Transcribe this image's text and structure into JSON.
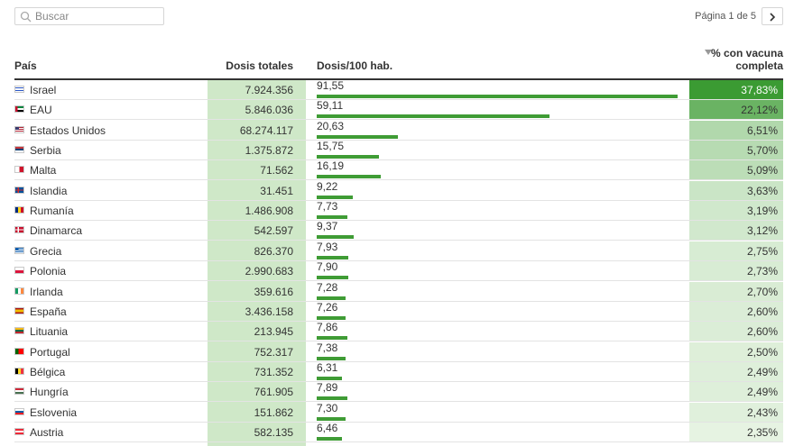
{
  "search": {
    "placeholder": "Buscar"
  },
  "pager": {
    "text": "Página 1 de 5"
  },
  "headers": {
    "country": "País",
    "total": "Dosis totales",
    "per100": "Dosis/100 hab.",
    "pct_line1": "% con vacuna",
    "pct_line2": "completa"
  },
  "rows": [
    {
      "country": "Israel",
      "flag": "israel",
      "total": "7.924.356",
      "per100": "91,55",
      "per100_value": 91.55,
      "pct": "37,83%",
      "pct_value": 37.83
    },
    {
      "country": "EAU",
      "flag": "uae",
      "total": "5.846.036",
      "per100": "59,11",
      "per100_value": 59.11,
      "pct": "22,12%",
      "pct_value": 22.12
    },
    {
      "country": "Estados Unidos",
      "flag": "usa",
      "total": "68.274.117",
      "per100": "20,63",
      "per100_value": 20.63,
      "pct": "6,51%",
      "pct_value": 6.51
    },
    {
      "country": "Serbia",
      "flag": "serbia",
      "total": "1.375.872",
      "per100": "15,75",
      "per100_value": 15.75,
      "pct": "5,70%",
      "pct_value": 5.7
    },
    {
      "country": "Malta",
      "flag": "malta",
      "total": "71.562",
      "per100": "16,19",
      "per100_value": 16.19,
      "pct": "5,09%",
      "pct_value": 5.09
    },
    {
      "country": "Islandia",
      "flag": "iceland",
      "total": "31.451",
      "per100": "9,22",
      "per100_value": 9.22,
      "pct": "3,63%",
      "pct_value": 3.63
    },
    {
      "country": "Rumanía",
      "flag": "romania",
      "total": "1.486.908",
      "per100": "7,73",
      "per100_value": 7.73,
      "pct": "3,19%",
      "pct_value": 3.19
    },
    {
      "country": "Dinamarca",
      "flag": "denmark",
      "total": "542.597",
      "per100": "9,37",
      "per100_value": 9.37,
      "pct": "3,12%",
      "pct_value": 3.12
    },
    {
      "country": "Grecia",
      "flag": "greece",
      "total": "826.370",
      "per100": "7,93",
      "per100_value": 7.93,
      "pct": "2,75%",
      "pct_value": 2.75
    },
    {
      "country": "Polonia",
      "flag": "poland",
      "total": "2.990.683",
      "per100": "7,90",
      "per100_value": 7.9,
      "pct": "2,73%",
      "pct_value": 2.73
    },
    {
      "country": "Irlanda",
      "flag": "ireland",
      "total": "359.616",
      "per100": "7,28",
      "per100_value": 7.28,
      "pct": "2,70%",
      "pct_value": 2.7
    },
    {
      "country": "España",
      "flag": "spain",
      "total": "3.436.158",
      "per100": "7,26",
      "per100_value": 7.26,
      "pct": "2,60%",
      "pct_value": 2.6
    },
    {
      "country": "Lituania",
      "flag": "lithuania",
      "total": "213.945",
      "per100": "7,86",
      "per100_value": 7.86,
      "pct": "2,60%",
      "pct_value": 2.6
    },
    {
      "country": "Portugal",
      "flag": "portugal",
      "total": "752.317",
      "per100": "7,38",
      "per100_value": 7.38,
      "pct": "2,50%",
      "pct_value": 2.5
    },
    {
      "country": "Bélgica",
      "flag": "belgium",
      "total": "731.352",
      "per100": "6,31",
      "per100_value": 6.31,
      "pct": "2,49%",
      "pct_value": 2.49
    },
    {
      "country": "Hungría",
      "flag": "hungary",
      "total": "761.905",
      "per100": "7,89",
      "per100_value": 7.89,
      "pct": "2,49%",
      "pct_value": 2.49
    },
    {
      "country": "Eslovenia",
      "flag": "slovenia",
      "total": "151.862",
      "per100": "7,30",
      "per100_value": 7.3,
      "pct": "2,43%",
      "pct_value": 2.43
    },
    {
      "country": "Austria",
      "flag": "austria",
      "total": "582.135",
      "per100": "6,46",
      "per100_value": 6.46,
      "pct": "2,35%",
      "pct_value": 2.35
    }
  ],
  "colors": {
    "bar": "#3f9c35",
    "total_column_bg": "#cfe8c8",
    "pct_scale_low": "#e6f3e2",
    "pct_scale_high": "#3b9b33"
  }
}
